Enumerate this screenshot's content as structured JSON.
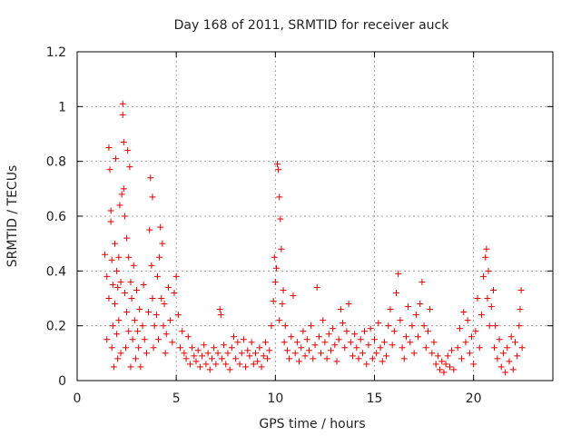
{
  "chart_data": {
    "type": "scatter",
    "title": "Day 168 of 2011, SRMTID for receiver auck",
    "xlabel": "GPS time / hours",
    "ylabel": "SRMTID / TECUs",
    "xlim": [
      0,
      24
    ],
    "ylim": [
      0,
      1.2
    ],
    "xticks": [
      0,
      5,
      10,
      15,
      20
    ],
    "yticks": [
      0,
      0.2,
      0.4,
      0.6,
      0.8,
      1,
      1.2
    ],
    "xtick_labels": [
      "0",
      "5",
      "10",
      "15",
      "20"
    ],
    "ytick_labels": [
      "0",
      "0.2",
      "0.4",
      "0.6",
      "0.8",
      "1",
      "1.2"
    ],
    "grid": true,
    "marker": "+",
    "color": "#e00000",
    "series": [
      {
        "name": "SRMTID",
        "points": [
          [
            1.4,
            0.46
          ],
          [
            1.5,
            0.38
          ],
          [
            1.5,
            0.15
          ],
          [
            1.6,
            0.3
          ],
          [
            1.6,
            0.85
          ],
          [
            1.65,
            0.77
          ],
          [
            1.7,
            0.62
          ],
          [
            1.7,
            0.58
          ],
          [
            1.75,
            0.44
          ],
          [
            1.75,
            0.12
          ],
          [
            1.8,
            0.35
          ],
          [
            1.8,
            0.2
          ],
          [
            1.85,
            0.05
          ],
          [
            1.9,
            0.28
          ],
          [
            1.9,
            0.5
          ],
          [
            1.95,
            0.81
          ],
          [
            2.0,
            0.4
          ],
          [
            2.0,
            0.17
          ],
          [
            2.05,
            0.34
          ],
          [
            2.05,
            0.08
          ],
          [
            2.1,
            0.22
          ],
          [
            2.1,
            0.45
          ],
          [
            2.15,
            0.64
          ],
          [
            2.2,
            0.36
          ],
          [
            2.2,
            0.1
          ],
          [
            2.25,
            0.68
          ],
          [
            2.3,
            1.01
          ],
          [
            2.3,
            0.97
          ],
          [
            2.35,
            0.87
          ],
          [
            2.35,
            0.7
          ],
          [
            2.4,
            0.6
          ],
          [
            2.4,
            0.32
          ],
          [
            2.45,
            0.12
          ],
          [
            2.5,
            0.52
          ],
          [
            2.5,
            0.25
          ],
          [
            2.55,
            0.84
          ],
          [
            2.6,
            0.45
          ],
          [
            2.6,
            0.18
          ],
          [
            2.65,
            0.78
          ],
          [
            2.7,
            0.36
          ],
          [
            2.7,
            0.05
          ],
          [
            2.75,
            0.3
          ],
          [
            2.8,
            0.15
          ],
          [
            2.85,
            0.42
          ],
          [
            2.9,
            0.22
          ],
          [
            2.95,
            0.08
          ],
          [
            3.0,
            0.33
          ],
          [
            3.05,
            0.18
          ],
          [
            3.1,
            0.12
          ],
          [
            3.15,
            0.26
          ],
          [
            3.2,
            0.05
          ],
          [
            3.3,
            0.2
          ],
          [
            3.35,
            0.35
          ],
          [
            3.4,
            0.15
          ],
          [
            3.5,
            0.1
          ],
          [
            3.6,
            0.25
          ],
          [
            3.65,
            0.55
          ],
          [
            3.7,
            0.74
          ],
          [
            3.75,
            0.42
          ],
          [
            3.8,
            0.67
          ],
          [
            3.8,
            0.3
          ],
          [
            3.85,
            0.12
          ],
          [
            3.9,
            0.2
          ],
          [
            4.0,
            0.24
          ],
          [
            4.05,
            0.38
          ],
          [
            4.1,
            0.15
          ],
          [
            4.15,
            0.45
          ],
          [
            4.2,
            0.56
          ],
          [
            4.25,
            0.3
          ],
          [
            4.3,
            0.5
          ],
          [
            4.35,
            0.2
          ],
          [
            4.4,
            0.28
          ],
          [
            4.45,
            0.1
          ],
          [
            4.5,
            0.17
          ],
          [
            4.6,
            0.34
          ],
          [
            4.7,
            0.22
          ],
          [
            4.8,
            0.14
          ],
          [
            4.9,
            0.32
          ],
          [
            5.0,
            0.38
          ],
          [
            5.1,
            0.24
          ],
          [
            5.2,
            0.12
          ],
          [
            5.3,
            0.18
          ],
          [
            5.4,
            0.1
          ],
          [
            5.5,
            0.08
          ],
          [
            5.6,
            0.16
          ],
          [
            5.7,
            0.06
          ],
          [
            5.8,
            0.12
          ],
          [
            5.9,
            0.09
          ],
          [
            6.0,
            0.07
          ],
          [
            6.1,
            0.11
          ],
          [
            6.2,
            0.05
          ],
          [
            6.3,
            0.09
          ],
          [
            6.4,
            0.13
          ],
          [
            6.5,
            0.06
          ],
          [
            6.6,
            0.1
          ],
          [
            6.7,
            0.04
          ],
          [
            6.8,
            0.08
          ],
          [
            6.9,
            0.12
          ],
          [
            7.0,
            0.06
          ],
          [
            7.1,
            0.1
          ],
          [
            7.2,
            0.26
          ],
          [
            7.25,
            0.24
          ],
          [
            7.3,
            0.08
          ],
          [
            7.4,
            0.13
          ],
          [
            7.5,
            0.06
          ],
          [
            7.6,
            0.1
          ],
          [
            7.7,
            0.04
          ],
          [
            7.8,
            0.12
          ],
          [
            7.9,
            0.16
          ],
          [
            8.0,
            0.08
          ],
          [
            8.1,
            0.14
          ],
          [
            8.2,
            0.06
          ],
          [
            8.3,
            0.1
          ],
          [
            8.4,
            0.15
          ],
          [
            8.5,
            0.05
          ],
          [
            8.6,
            0.11
          ],
          [
            8.7,
            0.09
          ],
          [
            8.8,
            0.14
          ],
          [
            8.9,
            0.06
          ],
          [
            9.0,
            0.1
          ],
          [
            9.1,
            0.07
          ],
          [
            9.2,
            0.12
          ],
          [
            9.3,
            0.05
          ],
          [
            9.4,
            0.09
          ],
          [
            9.5,
            0.14
          ],
          [
            9.6,
            0.08
          ],
          [
            9.7,
            0.11
          ],
          [
            9.8,
            0.2
          ],
          [
            9.9,
            0.29
          ],
          [
            9.95,
            0.45
          ],
          [
            10.0,
            0.36
          ],
          [
            10.05,
            0.41
          ],
          [
            10.1,
            0.79
          ],
          [
            10.15,
            0.77
          ],
          [
            10.2,
            0.67
          ],
          [
            10.2,
            0.22
          ],
          [
            10.25,
            0.59
          ],
          [
            10.3,
            0.48
          ],
          [
            10.35,
            0.28
          ],
          [
            10.4,
            0.33
          ],
          [
            10.45,
            0.14
          ],
          [
            10.5,
            0.2
          ],
          [
            10.6,
            0.11
          ],
          [
            10.7,
            0.08
          ],
          [
            10.8,
            0.16
          ],
          [
            10.9,
            0.31
          ],
          [
            11.0,
            0.1
          ],
          [
            11.1,
            0.14
          ],
          [
            11.2,
            0.07
          ],
          [
            11.3,
            0.12
          ],
          [
            11.4,
            0.18
          ],
          [
            11.5,
            0.09
          ],
          [
            11.6,
            0.15
          ],
          [
            11.7,
            0.11
          ],
          [
            11.8,
            0.2
          ],
          [
            11.9,
            0.08
          ],
          [
            12.0,
            0.13
          ],
          [
            12.1,
            0.34
          ],
          [
            12.2,
            0.16
          ],
          [
            12.3,
            0.1
          ],
          [
            12.4,
            0.22
          ],
          [
            12.5,
            0.14
          ],
          [
            12.6,
            0.08
          ],
          [
            12.7,
            0.17
          ],
          [
            12.8,
            0.11
          ],
          [
            12.9,
            0.19
          ],
          [
            13.0,
            0.13
          ],
          [
            13.1,
            0.07
          ],
          [
            13.2,
            0.15
          ],
          [
            13.3,
            0.26
          ],
          [
            13.4,
            0.21
          ],
          [
            13.5,
            0.12
          ],
          [
            13.6,
            0.18
          ],
          [
            13.7,
            0.28
          ],
          [
            13.8,
            0.14
          ],
          [
            13.9,
            0.09
          ],
          [
            14.0,
            0.17
          ],
          [
            14.1,
            0.12
          ],
          [
            14.2,
            0.08
          ],
          [
            14.3,
            0.15
          ],
          [
            14.4,
            0.1
          ],
          [
            14.5,
            0.18
          ],
          [
            14.6,
            0.06
          ],
          [
            14.7,
            0.13
          ],
          [
            14.8,
            0.19
          ],
          [
            14.9,
            0.08
          ],
          [
            15.0,
            0.15
          ],
          [
            15.1,
            0.1
          ],
          [
            15.2,
            0.21
          ],
          [
            15.3,
            0.12
          ],
          [
            15.4,
            0.07
          ],
          [
            15.5,
            0.14
          ],
          [
            15.6,
            0.09
          ],
          [
            15.7,
            0.2
          ],
          [
            15.8,
            0.26
          ],
          [
            15.9,
            0.13
          ],
          [
            16.0,
            0.18
          ],
          [
            16.1,
            0.32
          ],
          [
            16.2,
            0.39
          ],
          [
            16.3,
            0.22
          ],
          [
            16.4,
            0.12
          ],
          [
            16.5,
            0.08
          ],
          [
            16.6,
            0.16
          ],
          [
            16.7,
            0.27
          ],
          [
            16.8,
            0.14
          ],
          [
            16.9,
            0.2
          ],
          [
            17.0,
            0.1
          ],
          [
            17.1,
            0.24
          ],
          [
            17.2,
            0.16
          ],
          [
            17.3,
            0.28
          ],
          [
            17.4,
            0.36
          ],
          [
            17.5,
            0.2
          ],
          [
            17.6,
            0.12
          ],
          [
            17.7,
            0.18
          ],
          [
            17.8,
            0.26
          ],
          [
            17.9,
            0.1
          ],
          [
            18.0,
            0.14
          ],
          [
            18.1,
            0.06
          ],
          [
            18.2,
            0.09
          ],
          [
            18.3,
            0.04
          ],
          [
            18.4,
            0.07
          ],
          [
            18.5,
            0.03
          ],
          [
            18.6,
            0.06
          ],
          [
            18.7,
            0.09
          ],
          [
            18.8,
            0.05
          ],
          [
            18.9,
            0.11
          ],
          [
            19.0,
            0.04
          ],
          [
            19.2,
            0.12
          ],
          [
            19.3,
            0.19
          ],
          [
            19.4,
            0.08
          ],
          [
            19.5,
            0.25
          ],
          [
            19.6,
            0.14
          ],
          [
            19.7,
            0.22
          ],
          [
            19.8,
            0.1
          ],
          [
            19.9,
            0.16
          ],
          [
            20.0,
            0.06
          ],
          [
            20.1,
            0.18
          ],
          [
            20.2,
            0.3
          ],
          [
            20.3,
            0.12
          ],
          [
            20.4,
            0.24
          ],
          [
            20.5,
            0.38
          ],
          [
            20.6,
            0.45
          ],
          [
            20.65,
            0.48
          ],
          [
            20.7,
            0.3
          ],
          [
            20.75,
            0.4
          ],
          [
            20.8,
            0.2
          ],
          [
            20.9,
            0.27
          ],
          [
            21.0,
            0.33
          ],
          [
            21.05,
            0.12
          ],
          [
            21.1,
            0.2
          ],
          [
            21.2,
            0.08
          ],
          [
            21.3,
            0.15
          ],
          [
            21.4,
            0.05
          ],
          [
            21.5,
            0.1
          ],
          [
            21.6,
            0.03
          ],
          [
            21.7,
            0.12
          ],
          [
            21.8,
            0.07
          ],
          [
            21.9,
            0.16
          ],
          [
            22.0,
            0.04
          ],
          [
            22.1,
            0.14
          ],
          [
            22.2,
            0.09
          ],
          [
            22.3,
            0.2
          ],
          [
            22.35,
            0.26
          ],
          [
            22.4,
            0.33
          ],
          [
            22.45,
            0.12
          ]
        ]
      }
    ]
  }
}
